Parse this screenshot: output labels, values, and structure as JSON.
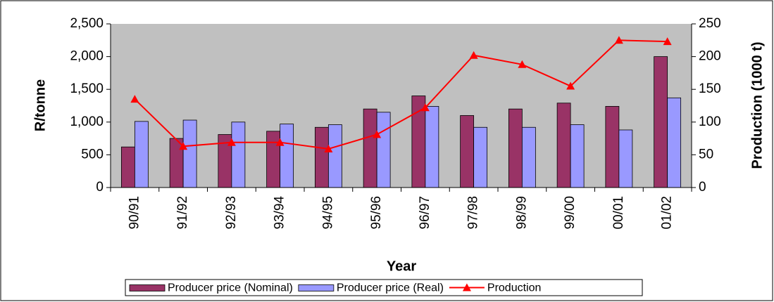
{
  "chart_data": {
    "type": "bar",
    "x_label": "Year",
    "y_label": "R/tonne",
    "y2_label": "Production (1000 t)",
    "categories": [
      "90/91",
      "91/92",
      "92/93",
      "93/94",
      "94/95",
      "95/96",
      "96/97",
      "97/98",
      "98/99",
      "99/00",
      "00/01",
      "01/02"
    ],
    "series": [
      {
        "name": "Producer price (Nominal)",
        "color": "#993366",
        "type": "bar",
        "values": [
          620,
          750,
          810,
          860,
          920,
          1200,
          1400,
          1100,
          1200,
          1290,
          1240,
          2000
        ]
      },
      {
        "name": "Producer price (Real)",
        "color": "#9999ff",
        "type": "bar",
        "values": [
          1010,
          1030,
          1000,
          970,
          960,
          1150,
          1240,
          920,
          920,
          960,
          880,
          1370
        ]
      },
      {
        "name": "Production",
        "color": "#ff0000",
        "type": "line",
        "marker": "triangle",
        "axis": "y2",
        "values": [
          135,
          63,
          69,
          69,
          59,
          81,
          122,
          202,
          188,
          155,
          225,
          223
        ]
      }
    ],
    "ylim": [
      0,
      2500
    ],
    "yticks": [
      0,
      500,
      {
        "value": 1000,
        "label": "1,000"
      },
      {
        "value": 1500,
        "label": "1,500"
      },
      {
        "value": 2000,
        "label": "2,000"
      },
      {
        "value": 2500,
        "label": "2,500"
      }
    ],
    "y2lim": [
      0,
      250
    ],
    "y2ticks": [
      0,
      50,
      100,
      150,
      200,
      250
    ],
    "grid": false,
    "plot_background": "#c0c0c0",
    "legend": "bottom"
  }
}
